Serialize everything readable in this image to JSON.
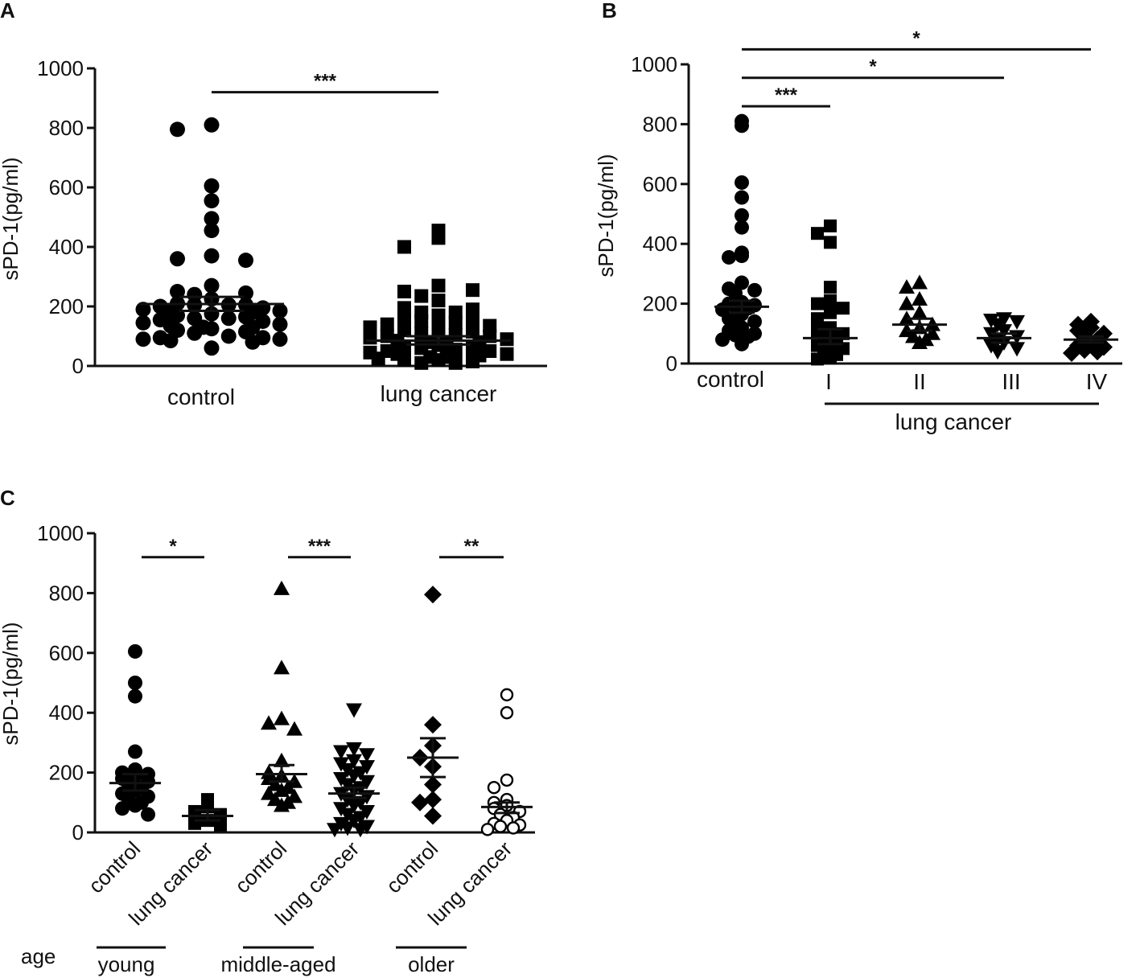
{
  "chart_data": [
    {
      "panel": "A",
      "type": "scatter",
      "ylabel": "sPD-1(pg/ml)",
      "ylim": [
        0,
        1000
      ],
      "yticks": [
        0,
        200,
        400,
        600,
        800,
        1000
      ],
      "groups": [
        {
          "name": "control",
          "marker": "circle",
          "mean": 208,
          "sem_upper": 232,
          "sem_lower": 185,
          "values": [
            810,
            795,
            605,
            555,
            495,
            455,
            370,
            360,
            355,
            270,
            250,
            245,
            240,
            225,
            210,
            205,
            205,
            205,
            200,
            195,
            190,
            185,
            180,
            180,
            175,
            170,
            165,
            160,
            160,
            155,
            150,
            145,
            140,
            135,
            130,
            130,
            125,
            120,
            115,
            110,
            100,
            95,
            95,
            90,
            90,
            85,
            80,
            60
          ]
        },
        {
          "name": "lung cancer",
          "marker": "square",
          "mean": 85,
          "sem_upper": 100,
          "sem_lower": 72,
          "values": [
            455,
            430,
            400,
            270,
            250,
            255,
            235,
            220,
            195,
            190,
            180,
            180,
            170,
            165,
            155,
            150,
            145,
            140,
            135,
            130,
            125,
            120,
            115,
            110,
            105,
            100,
            100,
            95,
            90,
            85,
            80,
            80,
            75,
            70,
            65,
            60,
            60,
            55,
            50,
            50,
            45,
            40,
            40,
            35,
            30,
            30,
            25,
            20,
            20,
            15,
            10,
            10
          ]
        }
      ],
      "significance": [
        {
          "from": "control",
          "to": "lung cancer",
          "label": "***",
          "y": 920
        }
      ]
    },
    {
      "panel": "B",
      "type": "scatter",
      "ylabel": "sPD-1(pg/ml)",
      "ylim": [
        0,
        1000
      ],
      "yticks": [
        0,
        200,
        400,
        600,
        800,
        1000
      ],
      "groups": [
        {
          "name": "control",
          "marker": "circle",
          "mean": 190,
          "sem_upper": 210,
          "sem_lower": 170,
          "values": [
            810,
            795,
            605,
            555,
            495,
            455,
            370,
            360,
            355,
            270,
            250,
            245,
            235,
            205,
            200,
            195,
            190,
            185,
            180,
            165,
            150,
            140,
            130,
            120,
            110,
            100,
            95,
            90,
            80,
            65
          ]
        },
        {
          "name": "I",
          "marker": "square",
          "mean": 85,
          "sem_upper": 115,
          "sem_lower": 65,
          "values": [
            460,
            435,
            405,
            255,
            210,
            200,
            185,
            170,
            150,
            120,
            110,
            100,
            90,
            80,
            70,
            60,
            50,
            40,
            30,
            20,
            15
          ]
        },
        {
          "name": "II",
          "marker": "triangle-up",
          "mean": 130,
          "sem_upper": 150,
          "sem_lower": 110,
          "values": [
            270,
            255,
            215,
            200,
            170,
            150,
            130,
            120,
            110,
            100,
            90,
            80,
            70
          ]
        },
        {
          "name": "III",
          "marker": "triangle-down",
          "mean": 85,
          "sem_upper": 100,
          "sem_lower": 70,
          "values": [
            150,
            145,
            140,
            130,
            110,
            100,
            90,
            80,
            70,
            60,
            50,
            40
          ]
        },
        {
          "name": "IV",
          "marker": "diamond",
          "mean": 80,
          "sem_upper": 90,
          "sem_lower": 70,
          "values": [
            140,
            130,
            120,
            110,
            100,
            90,
            80,
            70,
            60,
            55,
            45,
            40,
            35
          ]
        }
      ],
      "group_label": "lung cancer",
      "significance": [
        {
          "from": "control",
          "to": "IV",
          "label": "*",
          "y": 1050
        },
        {
          "from": "control",
          "to": "III",
          "label": "*",
          "y": 955
        },
        {
          "from": "control",
          "to": "I",
          "label": "***",
          "y": 860
        }
      ]
    },
    {
      "panel": "C",
      "type": "scatter",
      "ylabel": "sPD-1(pg/ml)",
      "ylim": [
        0,
        1000
      ],
      "yticks": [
        0,
        200,
        400,
        600,
        800,
        1000
      ],
      "axis_title": "age",
      "groups": [
        {
          "name": "control",
          "age": "young",
          "marker": "circle",
          "mean": 165,
          "sem_upper": 195,
          "sem_lower": 140,
          "values": [
            605,
            500,
            455,
            270,
            210,
            200,
            195,
            190,
            180,
            170,
            160,
            150,
            140,
            130,
            120,
            110,
            100,
            90,
            80,
            60
          ]
        },
        {
          "name": "lung cancer",
          "age": "young",
          "marker": "square",
          "mean": 55,
          "sem_upper": 75,
          "sem_lower": 40,
          "values": [
            110,
            85,
            70,
            60,
            40,
            30,
            25
          ]
        },
        {
          "name": "control",
          "age": "middle-aged",
          "marker": "triangle-up",
          "mean": 195,
          "sem_upper": 225,
          "sem_lower": 170,
          "values": [
            815,
            550,
            380,
            365,
            345,
            240,
            200,
            190,
            180,
            170,
            160,
            150,
            140,
            130,
            120,
            110,
            100,
            90
          ]
        },
        {
          "name": "lung cancer",
          "age": "middle-aged",
          "marker": "triangle-down",
          "mean": 130,
          "sem_upper": 150,
          "sem_lower": 115,
          "values": [
            410,
            280,
            270,
            260,
            240,
            230,
            220,
            210,
            200,
            190,
            180,
            170,
            160,
            150,
            140,
            130,
            120,
            110,
            100,
            90,
            80,
            70,
            60,
            50,
            40,
            30,
            20,
            15,
            10,
            10
          ]
        },
        {
          "name": "control",
          "age": "older",
          "marker": "diamond",
          "mean": 250,
          "sem_upper": 315,
          "sem_lower": 185,
          "values": [
            795,
            360,
            290,
            250,
            220,
            160,
            110,
            100,
            55
          ]
        },
        {
          "name": "lung cancer",
          "age": "older",
          "marker": "circle-open",
          "mean": 85,
          "sem_upper": 100,
          "sem_lower": 65,
          "values": [
            460,
            400,
            175,
            150,
            110,
            100,
            90,
            80,
            70,
            60,
            50,
            40,
            30,
            25,
            20,
            15,
            10
          ]
        }
      ],
      "age_groups": [
        "young",
        "middle-aged",
        "older"
      ],
      "significance": [
        {
          "from": 0,
          "to": 1,
          "label": "*",
          "y": 920
        },
        {
          "from": 2,
          "to": 3,
          "label": "***",
          "y": 920
        },
        {
          "from": 4,
          "to": 5,
          "label": "**",
          "y": 920
        }
      ]
    }
  ]
}
